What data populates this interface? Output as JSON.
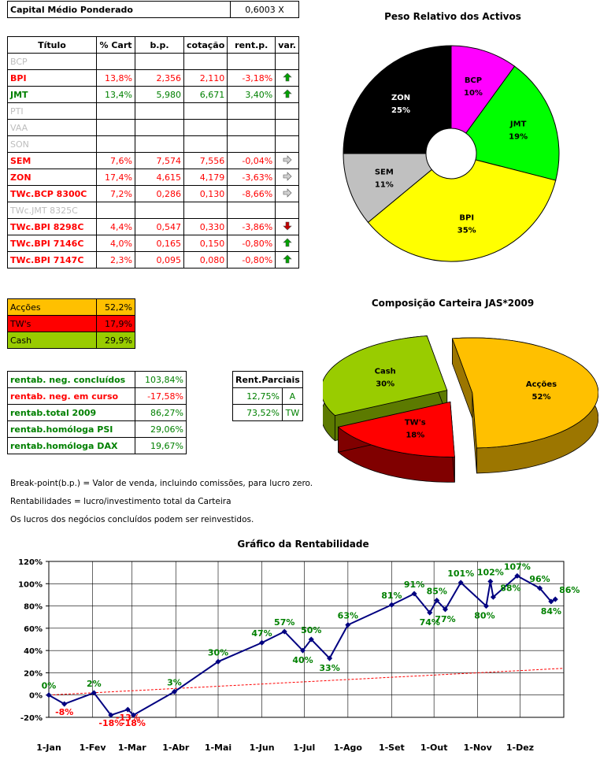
{
  "header": {
    "label": "Capital Médio Ponderado",
    "value": "0,6003 X"
  },
  "holdings": {
    "columns": [
      "Título",
      "% Cart",
      "b.p.",
      "cotação",
      "rent.p.",
      "var."
    ],
    "rows": [
      {
        "title": "BCP",
        "pct": "",
        "bp": "",
        "cot": "",
        "rent": "",
        "var": "",
        "color": "#bdbdbd"
      },
      {
        "title": "BPI",
        "pct": "13,8%",
        "bp": "2,356",
        "cot": "2,110",
        "rent": "-3,18%",
        "var": "up",
        "color": "#ff0000"
      },
      {
        "title": "JMT",
        "pct": "13,4%",
        "bp": "5,980",
        "cot": "6,671",
        "rent": "3,40%",
        "var": "up",
        "color": "#008000"
      },
      {
        "title": "PTI",
        "pct": "",
        "bp": "",
        "cot": "",
        "rent": "",
        "var": "",
        "color": "#bdbdbd"
      },
      {
        "title": "VAA",
        "pct": "",
        "bp": "",
        "cot": "",
        "rent": "",
        "var": "",
        "color": "#bdbdbd"
      },
      {
        "title": "SON",
        "pct": "",
        "bp": "",
        "cot": "",
        "rent": "",
        "var": "",
        "color": "#bdbdbd"
      },
      {
        "title": "SEM",
        "pct": "7,6%",
        "bp": "7,574",
        "cot": "7,556",
        "rent": "-0,04%",
        "var": "right",
        "color": "#ff0000"
      },
      {
        "title": "ZON",
        "pct": "17,4%",
        "bp": "4,615",
        "cot": "4,179",
        "rent": "-3,63%",
        "var": "right",
        "color": "#ff0000"
      },
      {
        "title": "TWc.BCP 8300C",
        "pct": "7,2%",
        "bp": "0,286",
        "cot": "0,130",
        "rent": "-8,66%",
        "var": "right",
        "color": "#ff0000"
      },
      {
        "title": "TWc.JMT 8325C",
        "pct": "",
        "bp": "",
        "cot": "",
        "rent": "",
        "var": "",
        "color": "#bdbdbd"
      },
      {
        "title": "TWc.BPI 8298C",
        "pct": "4,4%",
        "bp": "0,547",
        "cot": "0,330",
        "rent": "-3,86%",
        "var": "down",
        "color": "#ff0000"
      },
      {
        "title": "TWc.BPI 7146C",
        "pct": "4,0%",
        "bp": "0,165",
        "cot": "0,150",
        "rent": "-0,80%",
        "var": "up",
        "color": "#ff0000"
      },
      {
        "title": "TWc.BPI 7147C",
        "pct": "2,3%",
        "bp": "0,095",
        "cot": "0,080",
        "rent": "-0,80%",
        "var": "up",
        "color": "#ff0000"
      }
    ]
  },
  "allocation": [
    {
      "label": "Acções",
      "value": "52,2%",
      "bg": "#ffc000",
      "fg": "#000000"
    },
    {
      "label": "TW's",
      "value": "17,9%",
      "bg": "#ff0000",
      "fg": "#000000"
    },
    {
      "label": "Cash",
      "value": "29,9%",
      "bg": "#99cc00",
      "fg": "#000000"
    }
  ],
  "returns": [
    {
      "label": "rentab. neg. concluídos",
      "value": "103,84%",
      "color": "#008000"
    },
    {
      "label": "rentab. neg. em curso",
      "value": "-17,58%",
      "color": "#ff0000"
    },
    {
      "label": "rentab.total 2009",
      "value": "86,27%",
      "color": "#008000"
    },
    {
      "label": "rentab.homóloga PSI",
      "value": "29,06%",
      "color": "#008000"
    },
    {
      "label": "rentab.homóloga DAX",
      "value": "19,67%",
      "color": "#008000"
    }
  ],
  "partials": {
    "title": "Rent.Parciais",
    "rows": [
      {
        "value": "12,75%",
        "tag": "A"
      },
      {
        "value": "73,52%",
        "tag": "TW"
      }
    ]
  },
  "notes": [
    "Break-point(b.p.) = Valor de venda, incluindo comissões, para lucro zero.",
    "Rentabilidades = lucro/investimento total da Carteira",
    "Os lucros dos negócios concluídos podem ser reinvestidos."
  ],
  "chart_data": [
    {
      "type": "pie",
      "title": "Peso Relativo dos Activos",
      "labels": [
        "BCP",
        "JMT",
        "BPI",
        "SEM",
        "ZON"
      ],
      "values": [
        10,
        19,
        35,
        11,
        25
      ],
      "value_labels": [
        "10%",
        "19%",
        "35%",
        "11%",
        "25%"
      ],
      "colors": [
        "#ff00ff",
        "#00ff00",
        "#ffff00",
        "#c0c0c0",
        "#000000"
      ],
      "label_colors": [
        "#000000",
        "#000000",
        "#000000",
        "#000000",
        "#ffffff"
      ],
      "doughnut": true
    },
    {
      "type": "pie",
      "title": "Composição Carteira JAS*2009",
      "labels": [
        "Acções",
        "TW's",
        "Cash"
      ],
      "values": [
        52,
        18,
        30
      ],
      "value_labels": [
        "52%",
        "18%",
        "30%"
      ],
      "colors": [
        "#ffc000",
        "#ff0000",
        "#99cc00"
      ],
      "side_colors": [
        "#9c7600",
        "#800000",
        "#5c7a00"
      ],
      "style": "3d-exploded"
    },
    {
      "type": "line",
      "title": "Gráfico da Rentabilidade",
      "ylim": [
        -20,
        120
      ],
      "yticks": [
        -20,
        0,
        20,
        40,
        60,
        80,
        100,
        120
      ],
      "ytick_labels": [
        "-20%",
        "0%",
        "20%",
        "40%",
        "60%",
        "80%",
        "100%",
        "120%"
      ],
      "xlim": [
        "2009-01-01",
        "2010-01-01"
      ],
      "xticks": [
        "2009-01-01",
        "2009-02-01",
        "2009-03-01",
        "2009-04-01",
        "2009-05-01",
        "2009-06-01",
        "2009-07-01",
        "2009-08-01",
        "2009-09-01",
        "2009-10-01",
        "2009-11-01",
        "2009-12-01"
      ],
      "xtick_labels": [
        "1-Jan",
        "1-Fev",
        "1-Mar",
        "1-Abr",
        "1-Mai",
        "1-Jun",
        "1-Jul",
        "1-Ago",
        "1-Set",
        "1-Out",
        "1-Nov",
        "1-Dez"
      ],
      "grid": true,
      "series": [
        {
          "color": "#000080",
          "points": [
            {
              "x": "2009-01-01",
              "y": 0,
              "label": "0%"
            },
            {
              "x": "2009-01-12",
              "y": -8,
              "label": "-8%"
            },
            {
              "x": "2009-02-02",
              "y": 2,
              "label": "2%"
            },
            {
              "x": "2009-02-14",
              "y": -18,
              "label": "-18%"
            },
            {
              "x": "2009-02-26",
              "y": -13,
              "label": "-13%"
            },
            {
              "x": "2009-03-02",
              "y": -18,
              "label": "-18%"
            },
            {
              "x": "2009-03-31",
              "y": 3,
              "label": "3%"
            },
            {
              "x": "2009-05-01",
              "y": 30,
              "label": "30%"
            },
            {
              "x": "2009-06-01",
              "y": 47,
              "label": "47%"
            },
            {
              "x": "2009-06-17",
              "y": 57,
              "label": "57%"
            },
            {
              "x": "2009-06-30",
              "y": 40,
              "label": "40%"
            },
            {
              "x": "2009-07-06",
              "y": 50,
              "label": "50%"
            },
            {
              "x": "2009-07-19",
              "y": 33,
              "label": "33%"
            },
            {
              "x": "2009-08-01",
              "y": 63,
              "label": "63%"
            },
            {
              "x": "2009-09-01",
              "y": 81,
              "label": "81%"
            },
            {
              "x": "2009-09-17",
              "y": 91,
              "label": "91%"
            },
            {
              "x": "2009-09-28",
              "y": 74,
              "label": "74%"
            },
            {
              "x": "2009-10-03",
              "y": 85,
              "label": "85%"
            },
            {
              "x": "2009-10-09",
              "y": 77,
              "label": "77%"
            },
            {
              "x": "2009-10-20",
              "y": 101,
              "label": "101%"
            },
            {
              "x": "2009-11-07",
              "y": 80,
              "label": "80%"
            },
            {
              "x": "2009-11-10",
              "y": 102,
              "label": "102%"
            },
            {
              "x": "2009-11-12",
              "y": 88,
              "label": "88%"
            },
            {
              "x": "2009-11-29",
              "y": 107,
              "label": "107%"
            },
            {
              "x": "2009-12-15",
              "y": 96,
              "label": "96%"
            },
            {
              "x": "2009-12-23",
              "y": 84,
              "label": "84%"
            },
            {
              "x": "2009-12-26",
              "y": 86,
              "label": "86%"
            }
          ]
        },
        {
          "style": "dashed",
          "color": "#ff0000",
          "points": [
            {
              "x": "2009-01-01",
              "y": 0
            },
            {
              "x": "2010-01-01",
              "y": 24
            }
          ]
        }
      ]
    }
  ]
}
